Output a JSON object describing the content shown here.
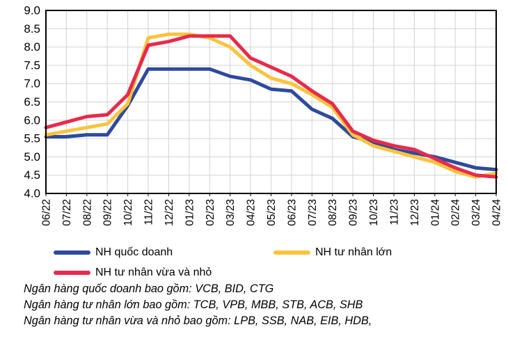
{
  "chart_data": {
    "type": "line",
    "title": "",
    "xlabel": "",
    "ylabel": "",
    "categories": [
      "06/22",
      "07/22",
      "08/22",
      "09/22",
      "10/22",
      "11/22",
      "12/22",
      "01/23",
      "02/23",
      "03/23",
      "04/23",
      "05/23",
      "06/23",
      "07/23",
      "08/23",
      "09/23",
      "10/23",
      "11/23",
      "12/23",
      "01/24",
      "02/24",
      "03/24",
      "04/24"
    ],
    "series": [
      {
        "name": "NH quốc doanh",
        "color": "#2f4a9c",
        "values": [
          5.55,
          5.55,
          5.6,
          5.6,
          6.4,
          7.4,
          7.4,
          7.4,
          7.4,
          7.2,
          7.1,
          6.85,
          6.8,
          6.3,
          6.05,
          5.55,
          5.4,
          5.2,
          5.1,
          5.0,
          4.85,
          4.7,
          4.65
        ]
      },
      {
        "name": "NH tư nhân lớn",
        "color": "#fac33e",
        "values": [
          5.6,
          5.7,
          5.8,
          5.9,
          6.45,
          8.25,
          8.35,
          8.35,
          8.25,
          8.0,
          7.5,
          7.15,
          7.0,
          6.7,
          6.35,
          5.6,
          5.3,
          5.15,
          5.0,
          4.85,
          4.6,
          4.45,
          4.55
        ]
      },
      {
        "name": "NH tư nhân vừa và nhỏ",
        "color": "#e62b4c",
        "values": [
          5.8,
          5.95,
          6.1,
          6.15,
          6.7,
          8.05,
          8.15,
          8.3,
          8.3,
          8.3,
          7.7,
          7.45,
          7.2,
          6.8,
          6.45,
          5.7,
          5.45,
          5.3,
          5.2,
          4.95,
          4.7,
          4.5,
          4.45
        ]
      }
    ],
    "ylim": [
      4.0,
      9.0
    ],
    "ytick_step": 0.5,
    "ytick_labels": [
      "4.0",
      "4.5",
      "5.0",
      "5.5",
      "6.0",
      "6.5",
      "7.0",
      "7.5",
      "8.0",
      "8.5",
      "9.0"
    ],
    "grid": true,
    "legend_position": "bottom"
  },
  "legend": {
    "items": [
      {
        "label": "NH quốc doanh",
        "color": "#2f4a9c"
      },
      {
        "label": "NH tư nhân lớn",
        "color": "#fac33e"
      },
      {
        "label": "NH tư nhân vừa và nhỏ",
        "color": "#e62b4c"
      }
    ]
  },
  "footnotes": {
    "line1": "Ngân hàng quốc doanh bao gồm: VCB, BID, CTG",
    "line2": "Ngân hàng tư nhân lớn bao gồm: TCB, VPB, MBB, STB, ACB, SHB",
    "line3": "Ngân hàng tư nhân vừa và nhỏ bao gồm: LPB, SSB, NAB, EIB, HDB,"
  },
  "colors": {
    "gridline": "#d2d2d2",
    "axis_border": "#000000",
    "background": "#ffffff",
    "text": "#000000"
  }
}
